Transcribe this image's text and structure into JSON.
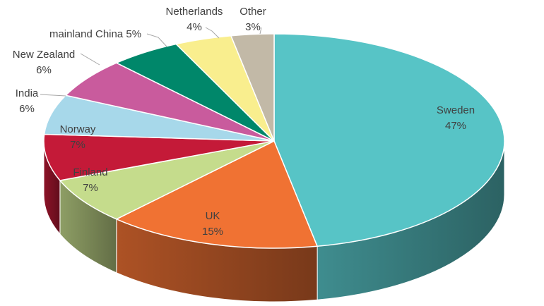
{
  "chart_data": {
    "type": "pie",
    "style": "3d",
    "categories": [
      "Sweden",
      "UK",
      "Finland",
      "Norway",
      "India",
      "New Zealand",
      "mainland China",
      "Netherlands",
      "Other"
    ],
    "values": [
      47,
      15,
      7,
      7,
      6,
      6,
      5,
      4,
      3
    ],
    "value_labels": [
      "47%",
      "15%",
      "7%",
      "7%",
      "6%",
      "6%",
      "5%",
      "4%",
      "3%"
    ],
    "colors": [
      "#57c4c6",
      "#f07233",
      "#c5dc8c",
      "#c41a38",
      "#a7d8ea",
      "#c95b9d",
      "#00876a",
      "#f9ee8e",
      "#c2b9a7"
    ],
    "legend": "none"
  }
}
